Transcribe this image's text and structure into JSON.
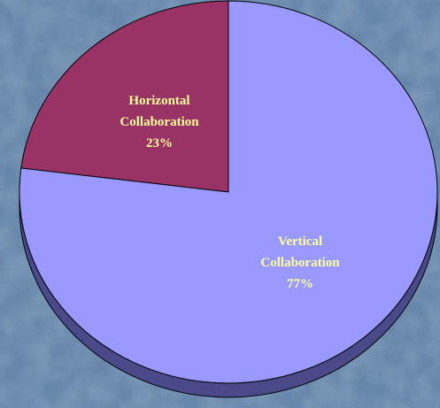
{
  "chart_data": {
    "type": "pie",
    "style": "3d",
    "title": "",
    "slices": [
      {
        "label_lines": [
          "Horizontal",
          "Collaboration"
        ],
        "percent_label": "23%",
        "value": 23,
        "color": "#993366",
        "side_color": "#5c1f3d"
      },
      {
        "label_lines": [
          "Vertical",
          "Collaboration"
        ],
        "percent_label": "77%",
        "value": 77,
        "color": "#9999ff",
        "side_color": "#4a4a8a"
      }
    ],
    "label_color": "#ffff99",
    "edge_color": "#000000",
    "background_color": "#5a7ba0"
  }
}
